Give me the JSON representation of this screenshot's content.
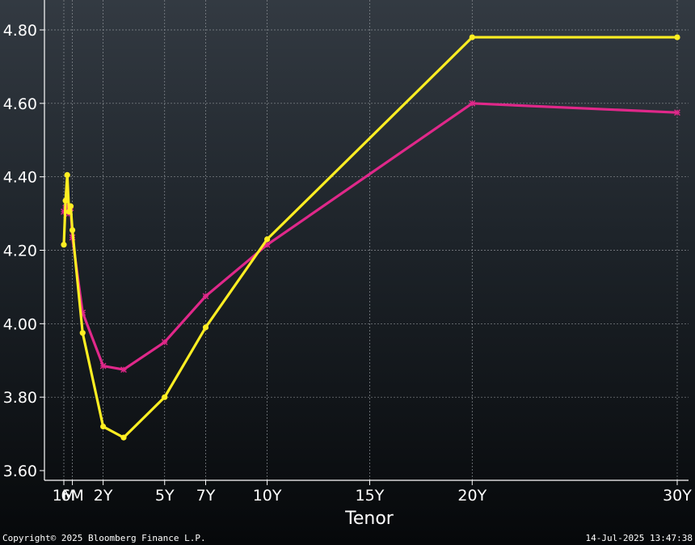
{
  "chart_data": {
    "type": "line",
    "xlabel": "Tenor",
    "ylabel": "",
    "ylim": [
      3.58,
      4.87
    ],
    "xlim_months": [
      0,
      363
    ],
    "x_ticks": [
      {
        "label": "1M",
        "months": 1
      },
      {
        "label": "6M",
        "months": 6
      },
      {
        "label": "2Y",
        "months": 24
      },
      {
        "label": "5Y",
        "months": 60
      },
      {
        "label": "7Y",
        "months": 84
      },
      {
        "label": "10Y",
        "months": 120
      },
      {
        "label": "15Y",
        "months": 180
      },
      {
        "label": "20Y",
        "months": 240
      },
      {
        "label": "30Y",
        "months": 360
      }
    ],
    "y_ticks": [
      {
        "label": "3.60",
        "value": 3.6
      },
      {
        "label": "3.80",
        "value": 3.8
      },
      {
        "label": "4.00",
        "value": 4.0
      },
      {
        "label": "4.20",
        "value": 4.2
      },
      {
        "label": "4.40",
        "value": 4.4
      },
      {
        "label": "4.60",
        "value": 4.6
      },
      {
        "label": "4.80",
        "value": 4.8
      }
    ],
    "grid": true,
    "series": [
      {
        "color": "#ffee22",
        "marker": "circle",
        "x_months": [
          1,
          2,
          3,
          4,
          5,
          6,
          12,
          24,
          36,
          60,
          84,
          120,
          240,
          360
        ],
        "values": [
          4.215,
          4.335,
          4.405,
          4.305,
          4.32,
          4.255,
          3.975,
          3.72,
          3.69,
          3.8,
          3.99,
          4.23,
          4.78,
          4.78
        ]
      },
      {
        "color": "#e0288a",
        "marker": "star",
        "x_months": [
          1,
          2,
          3,
          4,
          5,
          6,
          12,
          24,
          36,
          60,
          84,
          120,
          240,
          360
        ],
        "values": [
          4.305,
          4.315,
          4.32,
          4.3,
          4.315,
          4.235,
          4.03,
          3.885,
          3.875,
          3.95,
          4.075,
          4.215,
          4.6,
          4.575
        ]
      }
    ]
  },
  "footer": {
    "copyright": "Copyright© 2025 Bloomberg Finance L.P.",
    "timestamp": "14-Jul-2025 13:47:38"
  }
}
